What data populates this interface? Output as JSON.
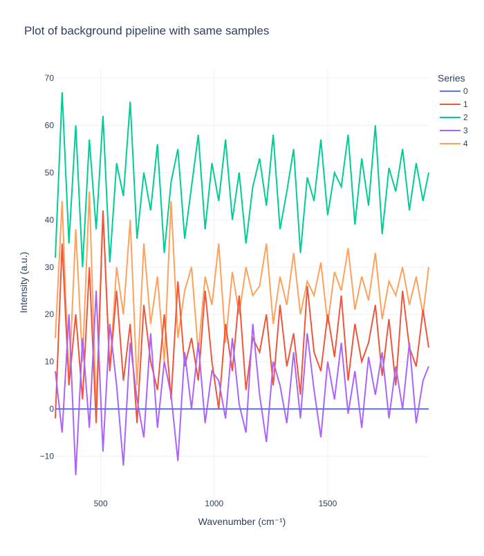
{
  "chart_data": {
    "type": "line",
    "title": "Plot of background pipeline with same samples",
    "xlabel": "Wavenumber (cm⁻¹)",
    "ylabel": "Intensity (a.u.)",
    "xlim": [
      300,
      1945
    ],
    "ylim": [
      -18.4,
      71.9
    ],
    "xticks": [
      500,
      1000,
      1500
    ],
    "xtick_labels": [
      "500",
      "1000",
      "1500"
    ],
    "yticks": [
      -10,
      0,
      10,
      20,
      30,
      40,
      50,
      60,
      70
    ],
    "ytick_labels": [
      "−10",
      "0",
      "10",
      "20",
      "30",
      "40",
      "50",
      "60",
      "70"
    ],
    "grid": true,
    "legend_title": "Series",
    "legend_position": "top-right",
    "x_start": 300,
    "x_step": 30,
    "series": [
      {
        "name": "0",
        "color": "#636efa",
        "values": [
          0,
          0,
          0,
          0,
          0,
          0,
          0,
          0,
          0,
          0,
          0,
          0,
          0,
          0,
          0,
          0,
          0,
          0,
          0,
          0,
          0,
          0,
          0,
          0,
          0,
          0,
          0,
          0,
          0,
          0,
          0,
          0,
          0,
          0,
          0,
          0,
          0,
          0,
          0,
          0,
          0,
          0,
          0,
          0,
          0,
          0,
          0,
          0,
          0,
          0,
          0,
          0,
          0,
          0,
          0,
          0
        ]
      },
      {
        "name": "1",
        "color": "#ef553b",
        "values": [
          -2,
          35,
          5,
          20,
          2,
          30,
          -3,
          42,
          8,
          25,
          6,
          18,
          -3,
          22,
          10,
          4,
          20,
          2,
          27,
          9,
          15,
          6,
          25,
          10,
          0,
          18,
          8,
          24,
          4,
          15,
          12,
          20,
          5,
          22,
          9,
          16,
          3,
          26,
          12,
          8,
          20,
          11,
          24,
          6,
          18,
          10,
          14,
          22,
          7,
          19,
          5,
          25,
          13,
          9,
          21,
          13
        ]
      },
      {
        "name": "2",
        "color": "#00cc96",
        "values": [
          32,
          67,
          35,
          60,
          30,
          57,
          38,
          62,
          31,
          52,
          45,
          65,
          36,
          50,
          42,
          56,
          33,
          48,
          55,
          36,
          47,
          58,
          38,
          52,
          44,
          57,
          40,
          50,
          35,
          47,
          53,
          43,
          58,
          38,
          46,
          55,
          33,
          49,
          44,
          57,
          41,
          50,
          47,
          58,
          39,
          53,
          43,
          60,
          37,
          51,
          46,
          55,
          42,
          52,
          44,
          50
        ]
      },
      {
        "name": "3",
        "color": "#ab63fa",
        "values": [
          8,
          -5,
          20,
          -14,
          15,
          -4,
          25,
          -9,
          18,
          5,
          -12,
          14,
          2,
          -6,
          16,
          -4,
          10,
          3,
          -11,
          12,
          0,
          14,
          -3,
          8,
          6,
          -2,
          15,
          1,
          -5,
          18,
          3,
          -7,
          10,
          5,
          -3,
          12,
          -2,
          16,
          4,
          -6,
          10,
          2,
          14,
          -1,
          8,
          -4,
          11,
          3,
          12,
          -2,
          9,
          0,
          14,
          -3,
          6,
          9
        ]
      },
      {
        "name": "4",
        "color": "#ffa15a",
        "values": [
          15,
          44,
          5,
          38,
          10,
          46,
          0,
          42,
          8,
          30,
          20,
          40,
          5,
          35,
          18,
          28,
          10,
          44,
          15,
          25,
          30,
          12,
          28,
          22,
          35,
          14,
          29,
          20,
          30,
          24,
          26,
          35,
          18,
          28,
          22,
          33,
          20,
          27,
          24,
          31,
          18,
          29,
          25,
          34,
          21,
          28,
          23,
          33,
          19,
          27,
          24,
          30,
          22,
          28,
          20,
          30
        ]
      }
    ]
  }
}
